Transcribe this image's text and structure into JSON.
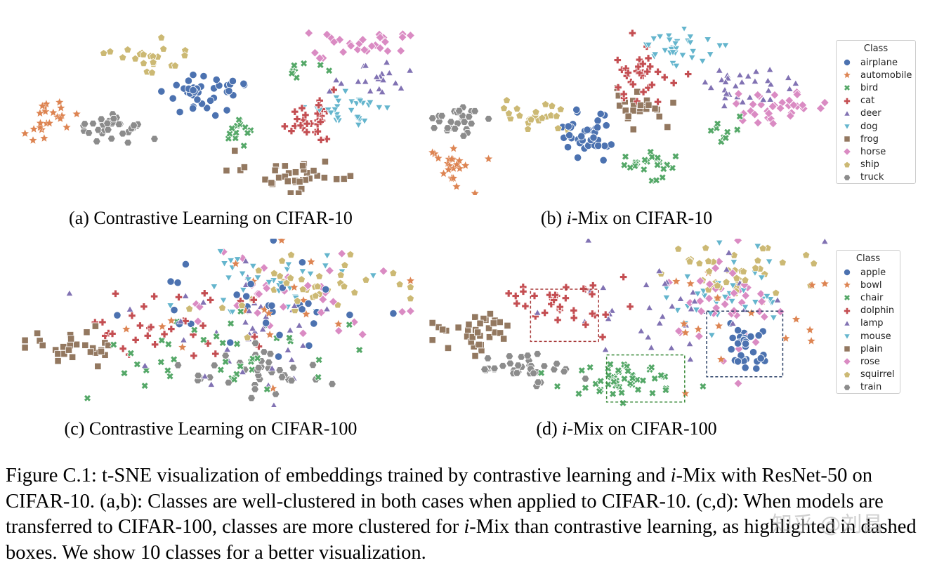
{
  "captions": {
    "a": "(a) Contrastive Learning on CIFAR-10",
    "b_prefix": "(b) ",
    "b_ital": "i",
    "b_suffix": "-Mix on CIFAR-10",
    "c": "(c) Contrastive Learning on CIFAR-100",
    "d_prefix": "(d) ",
    "d_ital": "i",
    "d_suffix": "-Mix on CIFAR-100"
  },
  "legend_top": {
    "title": "Class",
    "items": [
      "airplane",
      "automobile",
      "bird",
      "cat",
      "deer",
      "dog",
      "frog",
      "horse",
      "ship",
      "truck"
    ]
  },
  "legend_bottom": {
    "title": "Class",
    "items": [
      "apple",
      "bowl",
      "chair",
      "dolphin",
      "lamp",
      "mouse",
      "plain",
      "rose",
      "squirrel",
      "train"
    ]
  },
  "figure_caption": {
    "p1": "Figure C.1: t-SNE visualization of embeddings trained by contrastive learning and ",
    "i1": "i",
    "p2": "-Mix with ResNet-50 on CIFAR-10. (a,b): Classes are well-clustered in both cases when applied to CIFAR-10. (c,d): When models are transferred to CIFAR-100, classes are more clustered for ",
    "i2": "i",
    "p3": "-Mix than contrastive learning, as highlighted in dashed boxes. We show 10 classes for a better visualization."
  },
  "watermark": "知乎 @刘昌",
  "class_styles": [
    {
      "marker": "circle",
      "color": "#4c72b0"
    },
    {
      "marker": "star",
      "color": "#dd8452"
    },
    {
      "marker": "x",
      "color": "#55a868"
    },
    {
      "marker": "plus",
      "color": "#c44e52"
    },
    {
      "marker": "triangle",
      "color": "#8172b3"
    },
    {
      "marker": "tridown",
      "color": "#64b5cd"
    },
    {
      "marker": "square",
      "color": "#937860"
    },
    {
      "marker": "diamond",
      "color": "#da8bc3"
    },
    {
      "marker": "pentagon",
      "color": "#ccb974"
    },
    {
      "marker": "hexagon",
      "color": "#8c8c8c"
    }
  ],
  "dashed_box_colors": [
    "#a83a3a",
    "#3a8a3a",
    "#2a3f66"
  ],
  "chart_data": [
    {
      "type": "scatter",
      "title": "(a) Contrastive Learning on CIFAR-10",
      "xlabel": "",
      "ylabel": "",
      "classes": [
        "airplane",
        "automobile",
        "bird",
        "cat",
        "deer",
        "dog",
        "frog",
        "horse",
        "ship",
        "truck"
      ],
      "clusters": [
        {
          "class": "airplane",
          "cx": 0.47,
          "cy": 0.38,
          "sx": 0.05,
          "sy": 0.06,
          "n": 40
        },
        {
          "class": "automobile",
          "cx": 0.06,
          "cy": 0.55,
          "sx": 0.04,
          "sy": 0.06,
          "n": 22
        },
        {
          "class": "bird",
          "cx": 0.55,
          "cy": 0.64,
          "sx": 0.02,
          "sy": 0.04,
          "n": 14
        },
        {
          "class": "bird",
          "cx": 0.7,
          "cy": 0.25,
          "sx": 0.03,
          "sy": 0.03,
          "n": 8
        },
        {
          "class": "cat",
          "cx": 0.73,
          "cy": 0.55,
          "sx": 0.03,
          "sy": 0.09,
          "n": 28
        },
        {
          "class": "deer",
          "cx": 0.91,
          "cy": 0.3,
          "sx": 0.04,
          "sy": 0.06,
          "n": 20
        },
        {
          "class": "dog",
          "cx": 0.83,
          "cy": 0.48,
          "sx": 0.05,
          "sy": 0.05,
          "n": 30
        },
        {
          "class": "frog",
          "cx": 0.68,
          "cy": 0.88,
          "sx": 0.07,
          "sy": 0.05,
          "n": 35
        },
        {
          "class": "horse",
          "cx": 0.87,
          "cy": 0.1,
          "sx": 0.06,
          "sy": 0.04,
          "n": 28
        },
        {
          "class": "ship",
          "cx": 0.33,
          "cy": 0.18,
          "sx": 0.06,
          "sy": 0.05,
          "n": 22
        },
        {
          "class": "truck",
          "cx": 0.23,
          "cy": 0.58,
          "sx": 0.05,
          "sy": 0.05,
          "n": 32
        }
      ]
    },
    {
      "type": "scatter",
      "title": "(b) i-Mix on CIFAR-10",
      "xlabel": "",
      "ylabel": "",
      "classes": [
        "airplane",
        "automobile",
        "bird",
        "cat",
        "deer",
        "dog",
        "frog",
        "horse",
        "ship",
        "truck"
      ],
      "clusters": [
        {
          "class": "airplane",
          "cx": 0.39,
          "cy": 0.66,
          "sx": 0.04,
          "sy": 0.08,
          "n": 40
        },
        {
          "class": "automobile",
          "cx": 0.07,
          "cy": 0.82,
          "sx": 0.03,
          "sy": 0.08,
          "n": 22
        },
        {
          "class": "bird",
          "cx": 0.55,
          "cy": 0.82,
          "sx": 0.04,
          "sy": 0.04,
          "n": 24
        },
        {
          "class": "bird",
          "cx": 0.75,
          "cy": 0.6,
          "sx": 0.02,
          "sy": 0.04,
          "n": 10
        },
        {
          "class": "cat",
          "cx": 0.53,
          "cy": 0.26,
          "sx": 0.05,
          "sy": 0.09,
          "n": 32
        },
        {
          "class": "deer",
          "cx": 0.79,
          "cy": 0.36,
          "sx": 0.05,
          "sy": 0.06,
          "n": 30
        },
        {
          "class": "dog",
          "cx": 0.62,
          "cy": 0.14,
          "sx": 0.05,
          "sy": 0.06,
          "n": 32
        },
        {
          "class": "frog",
          "cx": 0.53,
          "cy": 0.48,
          "sx": 0.04,
          "sy": 0.06,
          "n": 26
        },
        {
          "class": "horse",
          "cx": 0.87,
          "cy": 0.47,
          "sx": 0.06,
          "sy": 0.05,
          "n": 34
        },
        {
          "class": "ship",
          "cx": 0.26,
          "cy": 0.52,
          "sx": 0.04,
          "sy": 0.05,
          "n": 24
        },
        {
          "class": "truck",
          "cx": 0.07,
          "cy": 0.55,
          "sx": 0.025,
          "sy": 0.05,
          "n": 28
        }
      ]
    },
    {
      "type": "scatter",
      "title": "(c) Contrastive Learning on CIFAR-100",
      "xlabel": "",
      "ylabel": "",
      "classes": [
        "apple",
        "bowl",
        "chair",
        "dolphin",
        "lamp",
        "mouse",
        "plain",
        "rose",
        "squirrel",
        "train"
      ],
      "clusters": [
        {
          "class": "apple",
          "cx": 0.58,
          "cy": 0.45,
          "sx": 0.14,
          "sy": 0.16,
          "n": 30
        },
        {
          "class": "bowl",
          "cx": 0.6,
          "cy": 0.4,
          "sx": 0.18,
          "sy": 0.18,
          "n": 18
        },
        {
          "class": "chair",
          "cx": 0.52,
          "cy": 0.65,
          "sx": 0.14,
          "sy": 0.12,
          "n": 40
        },
        {
          "class": "dolphin",
          "cx": 0.4,
          "cy": 0.5,
          "sx": 0.16,
          "sy": 0.14,
          "n": 34
        },
        {
          "class": "lamp",
          "cx": 0.56,
          "cy": 0.5,
          "sx": 0.18,
          "sy": 0.18,
          "n": 40
        },
        {
          "class": "mouse",
          "cx": 0.64,
          "cy": 0.25,
          "sx": 0.12,
          "sy": 0.1,
          "n": 34
        },
        {
          "class": "plain",
          "cx": 0.12,
          "cy": 0.66,
          "sx": 0.07,
          "sy": 0.06,
          "n": 32
        },
        {
          "class": "rose",
          "cx": 0.66,
          "cy": 0.33,
          "sx": 0.16,
          "sy": 0.12,
          "n": 36
        },
        {
          "class": "squirrel",
          "cx": 0.74,
          "cy": 0.28,
          "sx": 0.14,
          "sy": 0.1,
          "n": 38
        },
        {
          "class": "train",
          "cx": 0.62,
          "cy": 0.8,
          "sx": 0.1,
          "sy": 0.08,
          "n": 36
        }
      ]
    },
    {
      "type": "scatter",
      "title": "(d) i-Mix on CIFAR-100",
      "xlabel": "",
      "ylabel": "",
      "classes": [
        "apple",
        "bowl",
        "chair",
        "dolphin",
        "lamp",
        "mouse",
        "plain",
        "rose",
        "squirrel",
        "train"
      ],
      "clusters": [
        {
          "class": "apple",
          "cx": 0.8,
          "cy": 0.64,
          "sx": 0.03,
          "sy": 0.06,
          "n": 30
        },
        {
          "class": "bowl",
          "cx": 0.72,
          "cy": 0.45,
          "sx": 0.14,
          "sy": 0.18,
          "n": 18
        },
        {
          "class": "chair",
          "cx": 0.5,
          "cy": 0.83,
          "sx": 0.07,
          "sy": 0.06,
          "n": 50
        },
        {
          "class": "dolphin",
          "cx": 0.33,
          "cy": 0.4,
          "sx": 0.07,
          "sy": 0.08,
          "n": 34
        },
        {
          "class": "lamp",
          "cx": 0.6,
          "cy": 0.4,
          "sx": 0.16,
          "sy": 0.16,
          "n": 36
        },
        {
          "class": "mouse",
          "cx": 0.77,
          "cy": 0.3,
          "sx": 0.1,
          "sy": 0.12,
          "n": 34
        },
        {
          "class": "plain",
          "cx": 0.11,
          "cy": 0.55,
          "sx": 0.05,
          "sy": 0.06,
          "n": 34
        },
        {
          "class": "rose",
          "cx": 0.74,
          "cy": 0.36,
          "sx": 0.09,
          "sy": 0.14,
          "n": 40
        },
        {
          "class": "squirrel",
          "cx": 0.79,
          "cy": 0.2,
          "sx": 0.08,
          "sy": 0.08,
          "n": 42
        },
        {
          "class": "train",
          "cx": 0.24,
          "cy": 0.76,
          "sx": 0.06,
          "sy": 0.05,
          "n": 34
        }
      ],
      "dashed_boxes": [
        {
          "x0": 0.255,
          "y0": 0.3,
          "x1": 0.425,
          "y1": 0.61
        },
        {
          "x0": 0.445,
          "y0": 0.69,
          "x1": 0.64,
          "y1": 0.97
        },
        {
          "x0": 0.695,
          "y0": 0.43,
          "x1": 0.885,
          "y1": 0.82
        }
      ]
    }
  ]
}
